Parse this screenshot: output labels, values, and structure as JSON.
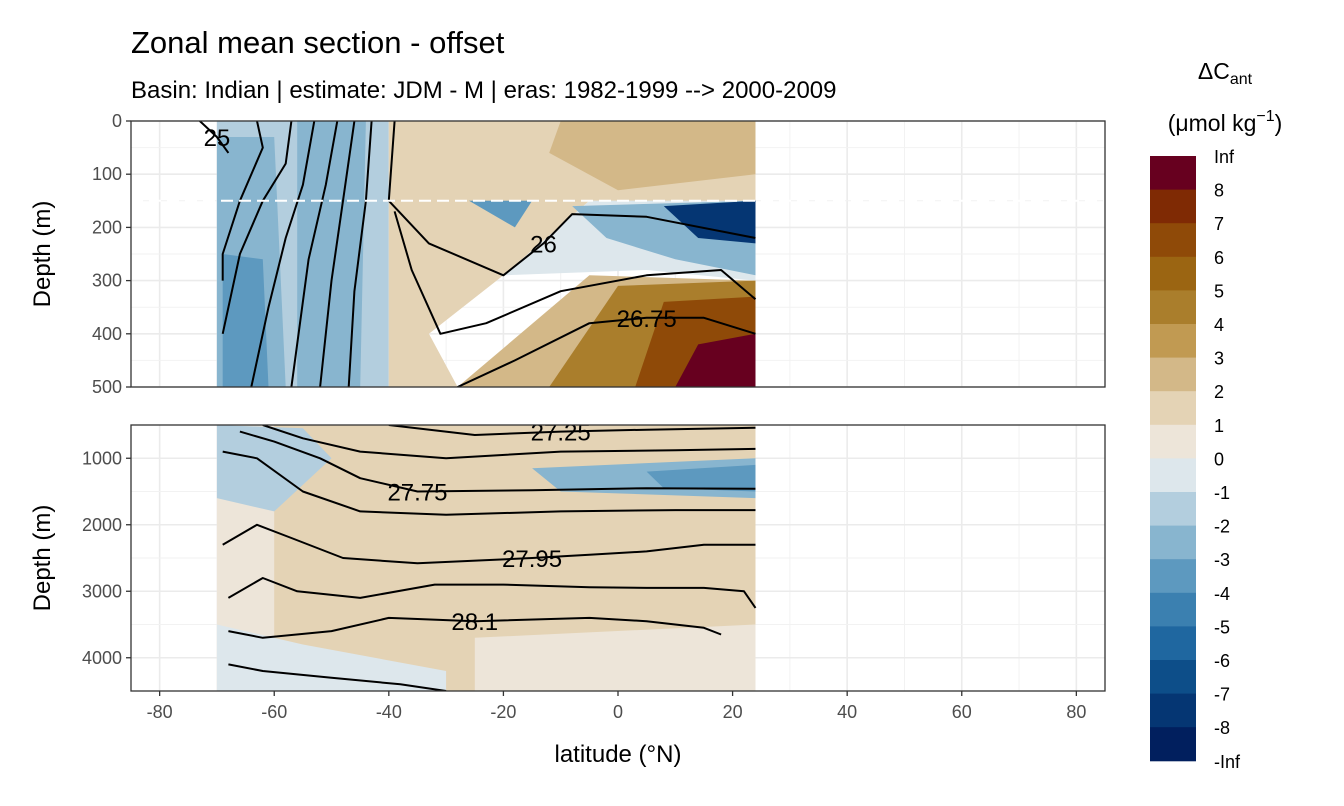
{
  "chart_data": {
    "type": "heatmap",
    "title": "Zonal mean section - offset",
    "subtitle": "Basin: Indian | estimate: JDM - M | eras: 1982-1999 --> 2000-2009",
    "xlabel": "latitude (°N)",
    "ylabel": "Depth (m)",
    "xlim": [
      -85,
      85
    ],
    "x_ticks": [
      -80,
      -60,
      -40,
      -20,
      0,
      20,
      40,
      60,
      80
    ],
    "panels": [
      {
        "name": "upper",
        "ylim": [
          0,
          500
        ],
        "y_ticks": [
          0,
          100,
          200,
          300,
          400,
          500
        ],
        "reference_line_depth": 150
      },
      {
        "name": "lower",
        "ylim": [
          500,
          4500
        ],
        "y_ticks": [
          1000,
          2000,
          3000,
          4000
        ]
      }
    ],
    "data_extent_lat": [
      -70,
      24
    ],
    "legend": {
      "title_main": "ΔC",
      "title_sub": "ant",
      "unit_prefix": "(μmol kg",
      "unit_sup": "−1",
      "unit_suffix": ")",
      "breaks": [
        "Inf",
        "8",
        "7",
        "6",
        "5",
        "4",
        "3",
        "2",
        "1",
        "0",
        "-1",
        "-2",
        "-3",
        "-4",
        "-5",
        "-6",
        "-7",
        "-8",
        "-Inf"
      ],
      "colors": [
        "#67001f",
        "#7f2a04",
        "#8f4a08",
        "#9b6512",
        "#aa7e2c",
        "#c19a52",
        "#d3b888",
        "#e4d3b5",
        "#ede5d9",
        "#dde7ec",
        "#b3cede",
        "#88b5cf",
        "#5d99bf",
        "#3b80b0",
        "#1f67a0",
        "#0d4e89",
        "#053673",
        "#011f5e"
      ]
    },
    "regions": [
      {
        "panel": "upper",
        "value_class": "-2",
        "polygon": [
          [
            -70,
            0
          ],
          [
            -40,
            0
          ],
          [
            -40,
            500
          ],
          [
            -70,
            500
          ]
        ]
      },
      {
        "panel": "upper",
        "value_class": "-3",
        "polygon": [
          [
            -70,
            30
          ],
          [
            -60,
            30
          ],
          [
            -58,
            500
          ],
          [
            -70,
            500
          ]
        ]
      },
      {
        "panel": "upper",
        "value_class": "-4",
        "polygon": [
          [
            -69,
            250
          ],
          [
            -62,
            260
          ],
          [
            -61,
            500
          ],
          [
            -69,
            500
          ]
        ]
      },
      {
        "panel": "upper",
        "value_class": "-3",
        "polygon": [
          [
            -56,
            0
          ],
          [
            -44,
            0
          ],
          [
            -45,
            500
          ],
          [
            -56,
            500
          ]
        ]
      },
      {
        "panel": "upper",
        "value_class": "0",
        "polygon": [
          [
            -40,
            0
          ],
          [
            -10,
            0
          ],
          [
            -25,
            150
          ],
          [
            -20,
            290
          ],
          [
            -33,
            400
          ],
          [
            -28,
            500
          ],
          [
            -40,
            500
          ]
        ]
      },
      {
        "panel": "upper",
        "value_class": "1",
        "polygon": [
          [
            -40,
            0
          ],
          [
            24,
            0
          ],
          [
            24,
            150
          ],
          [
            -5,
            150
          ],
          [
            -20,
            290
          ],
          [
            -33,
            400
          ],
          [
            -28,
            500
          ],
          [
            -40,
            500
          ]
        ]
      },
      {
        "panel": "upper",
        "value_class": "2",
        "polygon": [
          [
            -10,
            0
          ],
          [
            24,
            0
          ],
          [
            24,
            100
          ],
          [
            0,
            130
          ],
          [
            -12,
            60
          ]
        ]
      },
      {
        "panel": "upper",
        "value_class": "-1",
        "polygon": [
          [
            -20,
            290
          ],
          [
            -5,
            150
          ],
          [
            24,
            150
          ],
          [
            24,
            300
          ],
          [
            5,
            280
          ]
        ]
      },
      {
        "panel": "upper",
        "value_class": "-3",
        "polygon": [
          [
            -8,
            160
          ],
          [
            24,
            150
          ],
          [
            24,
            290
          ],
          [
            10,
            260
          ],
          [
            -2,
            220
          ]
        ]
      },
      {
        "panel": "upper",
        "value_class": "-8",
        "polygon": [
          [
            8,
            160
          ],
          [
            24,
            150
          ],
          [
            24,
            230
          ],
          [
            14,
            220
          ]
        ]
      },
      {
        "panel": "upper",
        "value_class": "-4",
        "polygon": [
          [
            -26,
            150
          ],
          [
            -15,
            150
          ],
          [
            -18,
            200
          ]
        ]
      },
      {
        "panel": "upper",
        "value_class": "2",
        "polygon": [
          [
            -28,
            500
          ],
          [
            -5,
            290
          ],
          [
            24,
            300
          ],
          [
            24,
            500
          ]
        ]
      },
      {
        "panel": "upper",
        "value_class": "4",
        "polygon": [
          [
            -12,
            500
          ],
          [
            0,
            310
          ],
          [
            24,
            300
          ],
          [
            24,
            500
          ]
        ]
      },
      {
        "panel": "upper",
        "value_class": "6",
        "polygon": [
          [
            3,
            500
          ],
          [
            8,
            340
          ],
          [
            24,
            330
          ],
          [
            24,
            500
          ]
        ]
      },
      {
        "panel": "upper",
        "value_class": "8",
        "polygon": [
          [
            10,
            500
          ],
          [
            14,
            420
          ],
          [
            24,
            400
          ],
          [
            24,
            500
          ]
        ]
      },
      {
        "panel": "lower",
        "value_class": "0",
        "polygon": [
          [
            -70,
            500
          ],
          [
            24,
            500
          ],
          [
            24,
            4500
          ],
          [
            -70,
            4500
          ]
        ]
      },
      {
        "panel": "lower",
        "value_class": "1",
        "polygon": [
          [
            -60,
            500
          ],
          [
            24,
            500
          ],
          [
            24,
            3500
          ],
          [
            -25,
            3700
          ],
          [
            -25,
            4500
          ],
          [
            -60,
            4500
          ]
        ]
      },
      {
        "panel": "lower",
        "value_class": "-2",
        "polygon": [
          [
            -70,
            500
          ],
          [
            -55,
            550
          ],
          [
            -50,
            1000
          ],
          [
            -60,
            1800
          ],
          [
            -70,
            1600
          ]
        ]
      },
      {
        "panel": "lower",
        "value_class": "-3",
        "polygon": [
          [
            -15,
            1150
          ],
          [
            24,
            1000
          ],
          [
            24,
            1600
          ],
          [
            -10,
            1500
          ]
        ]
      },
      {
        "panel": "lower",
        "value_class": "-4",
        "polygon": [
          [
            5,
            1200
          ],
          [
            24,
            1100
          ],
          [
            24,
            1500
          ],
          [
            8,
            1450
          ]
        ]
      },
      {
        "panel": "lower",
        "value_class": "-1",
        "polygon": [
          [
            -70,
            3500
          ],
          [
            -55,
            3800
          ],
          [
            -30,
            4200
          ],
          [
            -30,
            4500
          ],
          [
            -70,
            4500
          ]
        ]
      }
    ],
    "contours": [
      {
        "panel": "upper",
        "label": "25",
        "points": [
          [
            -73,
            0
          ],
          [
            -70,
            30
          ],
          [
            -68,
            60
          ]
        ]
      },
      {
        "panel": "upper",
        "label": "",
        "points": [
          [
            -63,
            0
          ],
          [
            -62,
            50
          ],
          [
            -66,
            150
          ],
          [
            -69,
            250
          ],
          [
            -69,
            300
          ]
        ]
      },
      {
        "panel": "upper",
        "label": "",
        "points": [
          [
            -57,
            0
          ],
          [
            -58,
            80
          ],
          [
            -62,
            150
          ],
          [
            -66,
            250
          ],
          [
            -69,
            400
          ]
        ]
      },
      {
        "panel": "upper",
        "label": "",
        "points": [
          [
            -53,
            0
          ],
          [
            -55,
            120
          ],
          [
            -58,
            220
          ],
          [
            -61,
            350
          ],
          [
            -64,
            500
          ]
        ]
      },
      {
        "panel": "upper",
        "label": "",
        "points": [
          [
            -49,
            0
          ],
          [
            -51,
            120
          ],
          [
            -54,
            260
          ],
          [
            -57,
            500
          ]
        ]
      },
      {
        "panel": "upper",
        "label": "",
        "points": [
          [
            -46,
            0
          ],
          [
            -48,
            150
          ],
          [
            -50,
            300
          ],
          [
            -52,
            500
          ]
        ]
      },
      {
        "panel": "upper",
        "label": "",
        "points": [
          [
            -43,
            0
          ],
          [
            -44,
            150
          ],
          [
            -46,
            320
          ],
          [
            -47,
            500
          ]
        ]
      },
      {
        "panel": "upper",
        "label": "26",
        "points": [
          [
            -39,
            0
          ],
          [
            -40,
            150
          ],
          [
            -33,
            230
          ],
          [
            -20,
            290
          ],
          [
            -13,
            230
          ],
          [
            -8,
            175
          ],
          [
            5,
            180
          ],
          [
            24,
            220
          ]
        ]
      },
      {
        "panel": "upper",
        "label": "",
        "points": [
          [
            -39,
            170
          ],
          [
            -36,
            280
          ],
          [
            -31,
            400
          ],
          [
            -23,
            380
          ],
          [
            -10,
            320
          ],
          [
            5,
            290
          ],
          [
            18,
            280
          ],
          [
            24,
            335
          ]
        ]
      },
      {
        "panel": "upper",
        "label": "26.75",
        "points": [
          [
            -28,
            500
          ],
          [
            -18,
            450
          ],
          [
            -5,
            380
          ],
          [
            5,
            370
          ],
          [
            15,
            370
          ],
          [
            24,
            400
          ]
        ]
      },
      {
        "panel": "lower",
        "label": "27.25",
        "points": [
          [
            -40,
            500
          ],
          [
            -25,
            650
          ],
          [
            -10,
            600
          ],
          [
            5,
            570
          ],
          [
            24,
            540
          ]
        ]
      },
      {
        "panel": "lower",
        "label": "",
        "points": [
          [
            -62,
            500
          ],
          [
            -55,
            700
          ],
          [
            -45,
            900
          ],
          [
            -30,
            1000
          ],
          [
            -10,
            900
          ],
          [
            10,
            880
          ],
          [
            24,
            860
          ]
        ]
      },
      {
        "panel": "lower",
        "label": "27.75",
        "points": [
          [
            -66,
            600
          ],
          [
            -60,
            750
          ],
          [
            -52,
            1000
          ],
          [
            -45,
            1300
          ],
          [
            -35,
            1500
          ],
          [
            -15,
            1480
          ],
          [
            5,
            1450
          ],
          [
            24,
            1460
          ]
        ]
      },
      {
        "panel": "lower",
        "label": "",
        "points": [
          [
            -69,
            900
          ],
          [
            -63,
            1000
          ],
          [
            -55,
            1500
          ],
          [
            -45,
            1800
          ],
          [
            -30,
            1850
          ],
          [
            -10,
            1800
          ],
          [
            10,
            1780
          ],
          [
            24,
            1780
          ]
        ]
      },
      {
        "panel": "lower",
        "label": "27.95",
        "points": [
          [
            -69,
            2300
          ],
          [
            -63,
            2000
          ],
          [
            -57,
            2200
          ],
          [
            -48,
            2500
          ],
          [
            -35,
            2580
          ],
          [
            -15,
            2500
          ],
          [
            -5,
            2450
          ],
          [
            5,
            2400
          ],
          [
            15,
            2300
          ],
          [
            24,
            2300
          ]
        ]
      },
      {
        "panel": "lower",
        "label": "",
        "points": [
          [
            -68,
            3100
          ],
          [
            -62,
            2800
          ],
          [
            -56,
            3000
          ],
          [
            -45,
            3100
          ],
          [
            -32,
            2900
          ],
          [
            -20,
            2900
          ],
          [
            -5,
            2940
          ],
          [
            5,
            2950
          ],
          [
            15,
            2950
          ],
          [
            22,
            3000
          ],
          [
            24,
            3250
          ]
        ]
      },
      {
        "panel": "lower",
        "label": "28.1",
        "points": [
          [
            -68,
            3600
          ],
          [
            -62,
            3700
          ],
          [
            -50,
            3600
          ],
          [
            -40,
            3400
          ],
          [
            -25,
            3450
          ],
          [
            -5,
            3400
          ],
          [
            5,
            3450
          ],
          [
            15,
            3550
          ],
          [
            18,
            3650
          ]
        ]
      },
      {
        "panel": "lower",
        "label": "",
        "points": [
          [
            -68,
            4100
          ],
          [
            -62,
            4200
          ],
          [
            -50,
            4300
          ],
          [
            -38,
            4400
          ],
          [
            -30,
            4500
          ]
        ]
      }
    ]
  }
}
